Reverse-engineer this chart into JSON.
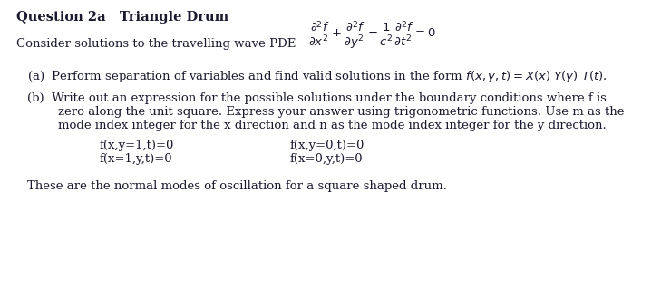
{
  "title": "Question 2a   Triangle Drum",
  "bg_color": "#ffffff",
  "text_color": "#1a1a2e",
  "figsize": [
    7.29,
    3.19
  ],
  "dpi": 100,
  "line1_prefix": "Consider solutions to the travelling wave PDE",
  "pde": "$\\dfrac{\\partial^2 f}{\\partial x^2} + \\dfrac{\\partial^2 f}{\\partial y^2} - \\dfrac{1}{c^2}\\dfrac{\\partial^2 f}{\\partial t^2} = 0$",
  "part_a": "(a)  Perform separation of variables and find valid solutions in the form $f(x,y,t) = X(x)\\ Y(y)\\ T(t)$.",
  "part_b_line1": "(b)  Write out an expression for the possible solutions under the boundary conditions where f is",
  "part_b_line2": "        zero along the unit square. Express your answer using trigonometric functions. Use m as the",
  "part_b_line3": "        mode index integer for the x direction and n as the mode index integer for the y direction.",
  "bc_left1": "f(x,y=1,t)=0",
  "bc_left2": "f(x=1,y,t)=0",
  "bc_right1": "f(x,y=0,t)=0",
  "bc_right2": "f(x=0,y,t)=0",
  "footer": "These are the normal modes of oscillation for a square shaped drum.",
  "fontsize": 9.5
}
